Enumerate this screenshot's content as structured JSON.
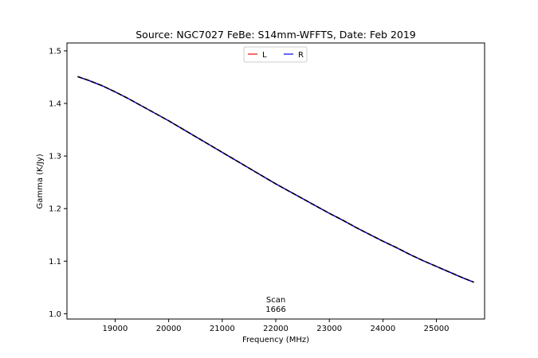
{
  "chart_data": {
    "type": "line",
    "title": "Source: NGC7027 FeBe: S14mm-WFFTS, Date: Feb 2019",
    "xlabel": "Frequency (MHz)",
    "ylabel": "Gamma (K/Jy)",
    "xlim": [
      18100,
      25900
    ],
    "ylim": [
      0.99,
      1.515
    ],
    "xticks": [
      19000,
      20000,
      21000,
      22000,
      23000,
      24000,
      25000
    ],
    "yticks": [
      1.0,
      1.1,
      1.2,
      1.3,
      1.4,
      1.5
    ],
    "xtick_labels": [
      "19000",
      "20000",
      "21000",
      "22000",
      "23000",
      "24000",
      "25000"
    ],
    "ytick_labels": [
      "1.0",
      "1.1",
      "1.2",
      "1.3",
      "1.4",
      "1.5"
    ],
    "grid": false,
    "legend_position": "top-center",
    "series": [
      {
        "name": "L",
        "color": "#ff0000",
        "x": [
          18300,
          18500,
          18750,
          19000,
          19250,
          19500,
          19750,
          20000,
          20250,
          20500,
          20750,
          21000,
          21250,
          21500,
          21750,
          22000,
          22250,
          22500,
          22750,
          23000,
          23250,
          23500,
          23750,
          24000,
          24250,
          24500,
          24750,
          25000,
          25250,
          25500,
          25700
        ],
        "y": [
          1.451,
          1.444,
          1.434,
          1.422,
          1.409,
          1.395,
          1.381,
          1.367,
          1.352,
          1.337,
          1.322,
          1.307,
          1.292,
          1.277,
          1.262,
          1.247,
          1.233,
          1.219,
          1.205,
          1.191,
          1.178,
          1.164,
          1.151,
          1.138,
          1.126,
          1.113,
          1.101,
          1.09,
          1.079,
          1.068,
          1.06
        ]
      },
      {
        "name": "R",
        "color": "#0000ff",
        "x": [
          18300,
          18500,
          18750,
          19000,
          19250,
          19500,
          19750,
          20000,
          20250,
          20500,
          20750,
          21000,
          21250,
          21500,
          21750,
          22000,
          22250,
          22500,
          22750,
          23000,
          23250,
          23500,
          23750,
          24000,
          24250,
          24500,
          24750,
          25000,
          25250,
          25500,
          25700
        ],
        "y": [
          1.451,
          1.444,
          1.434,
          1.422,
          1.409,
          1.395,
          1.381,
          1.367,
          1.352,
          1.337,
          1.322,
          1.307,
          1.292,
          1.277,
          1.262,
          1.247,
          1.233,
          1.219,
          1.205,
          1.191,
          1.178,
          1.164,
          1.151,
          1.138,
          1.126,
          1.113,
          1.101,
          1.09,
          1.079,
          1.068,
          1.06
        ]
      },
      {
        "color": "#000000",
        "style": "dashed",
        "x": [
          18300,
          18500,
          18750,
          19000,
          19250,
          19500,
          19750,
          20000,
          20250,
          20500,
          20750,
          21000,
          21250,
          21500,
          21750,
          22000,
          22250,
          22500,
          22750,
          23000,
          23250,
          23500,
          23750,
          24000,
          24250,
          24500,
          24750,
          25000,
          25250,
          25500,
          25700
        ],
        "y": [
          1.451,
          1.444,
          1.434,
          1.422,
          1.409,
          1.395,
          1.381,
          1.367,
          1.352,
          1.337,
          1.322,
          1.307,
          1.292,
          1.277,
          1.262,
          1.247,
          1.233,
          1.219,
          1.205,
          1.191,
          1.178,
          1.164,
          1.151,
          1.138,
          1.126,
          1.113,
          1.101,
          1.09,
          1.079,
          1.068,
          1.06
        ]
      }
    ],
    "annotation": {
      "line1": "Scan",
      "line2": "1666",
      "x": 22000
    }
  }
}
